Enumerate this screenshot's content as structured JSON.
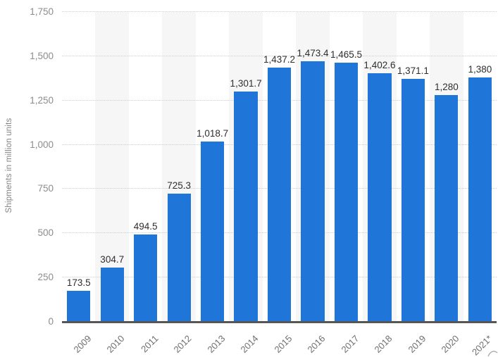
{
  "chart_data": {
    "type": "bar",
    "title": "",
    "xlabel": "",
    "ylabel": "Shipments in million units",
    "categories": [
      "2009",
      "2010",
      "2011",
      "2012",
      "2013",
      "2014",
      "2015",
      "2016",
      "2017",
      "2018",
      "2019",
      "2020",
      "2021*"
    ],
    "values": [
      173.5,
      304.7,
      494.5,
      725.3,
      1018.7,
      1301.7,
      1437.2,
      1473.4,
      1465.5,
      1402.6,
      1371.1,
      1280,
      1380
    ],
    "value_labels": [
      "173.5",
      "304.7",
      "494.5",
      "725.3",
      "1,018.7",
      "1,301.7",
      "1,437.2",
      "1,473.4",
      "1,465.5",
      "1,402.6",
      "1,371.1",
      "1,280",
      "1,380"
    ],
    "ylim": [
      0,
      1750
    ],
    "yticks": [
      0,
      250,
      500,
      750,
      1000,
      1250,
      1500,
      1750
    ],
    "ytick_labels": [
      "0",
      "250",
      "500",
      "750",
      "1,000",
      "1,250",
      "1,500",
      "1,750"
    ],
    "grid": "horizontal dotted",
    "legend": "none",
    "background_stripes": "alternating vertical bands behind every second category starting with 2010",
    "bar_color": "#2076d8",
    "stripe_color": "#f6f6f6",
    "axis_line_color": "#565656"
  }
}
